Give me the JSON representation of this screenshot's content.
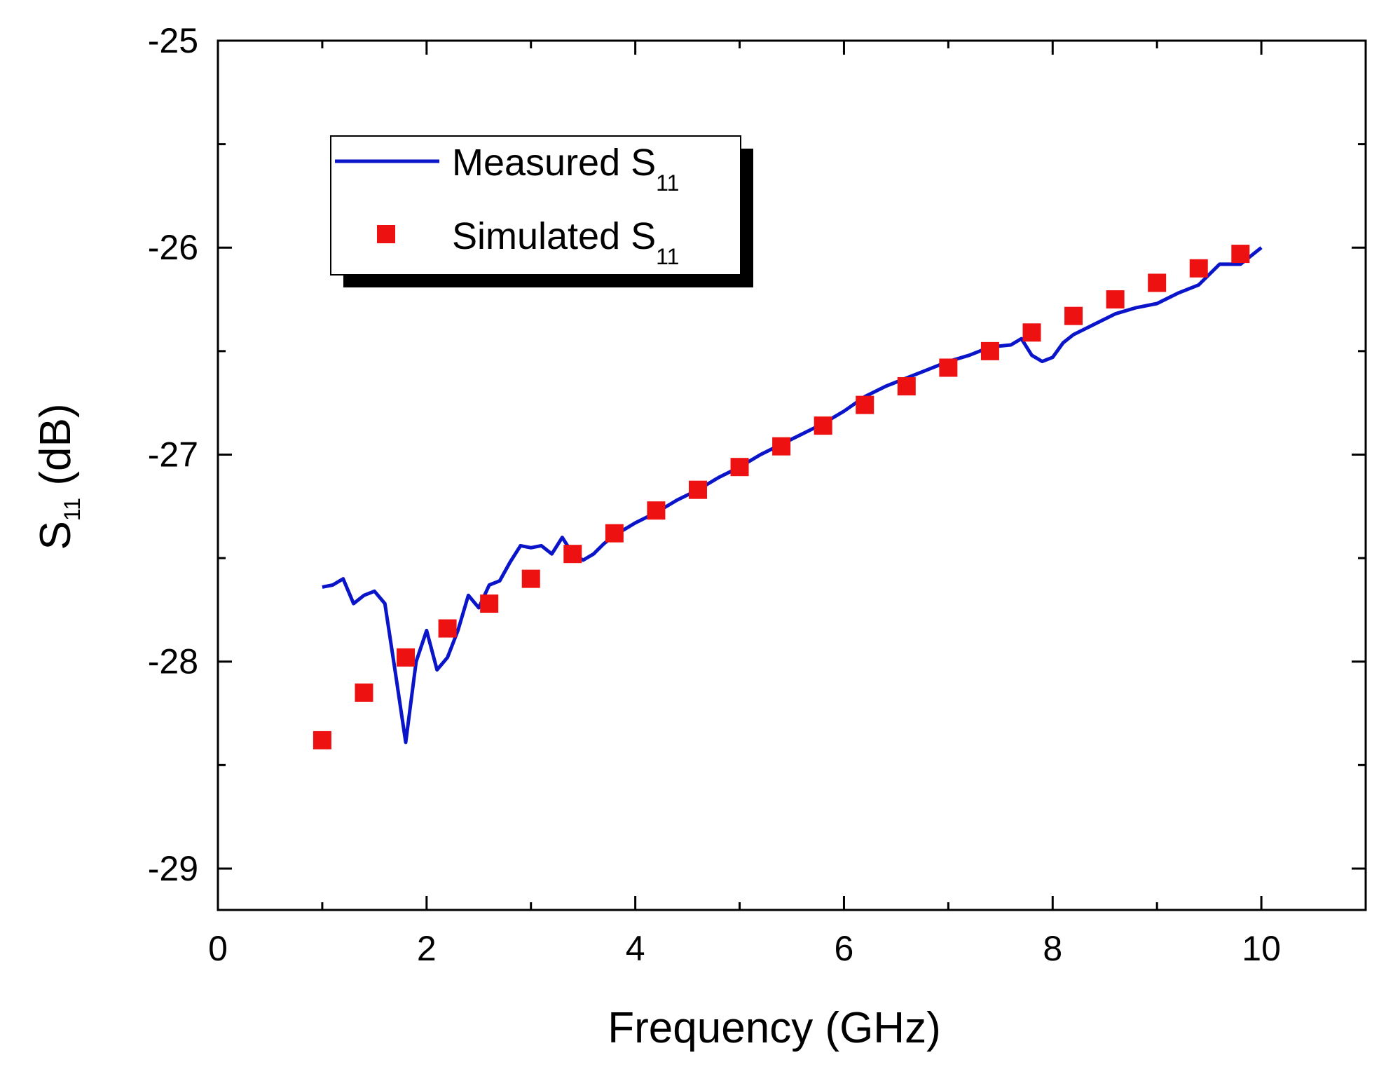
{
  "chart_data": {
    "type": "line",
    "xlabel": "Frequency (GHz)",
    "ylabel": "S11 (dB)",
    "ylabel_main": "S",
    "ylabel_sub": "11",
    "ylabel_unit": " (dB)",
    "xlim": [
      0,
      11
    ],
    "ylim": [
      -29.2,
      -25
    ],
    "x_ticks": [
      0,
      2,
      4,
      6,
      8,
      10
    ],
    "x_tick_labels": [
      "0",
      "2",
      "4",
      "6",
      "8",
      "10"
    ],
    "x_minor_ticks": [
      1,
      3,
      5,
      7,
      9,
      11
    ],
    "y_ticks": [
      -25,
      -26,
      -27,
      -28,
      -29
    ],
    "y_tick_labels": [
      "-25",
      "-26",
      "-27",
      "-28",
      "-29"
    ],
    "y_minor_ticks": [
      -25.5,
      -26.5,
      -27.5,
      -28.5
    ],
    "grid": false,
    "legend_position": "top-left",
    "series": [
      {
        "name": "Measured S11",
        "name_main": "Measured S",
        "name_sub": "11",
        "style": "line",
        "color": "#0a14c8",
        "x": [
          1.0,
          1.1,
          1.2,
          1.3,
          1.4,
          1.5,
          1.6,
          1.7,
          1.8,
          1.9,
          2.0,
          2.1,
          2.2,
          2.3,
          2.4,
          2.5,
          2.6,
          2.7,
          2.8,
          2.9,
          3.0,
          3.1,
          3.2,
          3.3,
          3.4,
          3.5,
          3.6,
          3.7,
          3.8,
          3.9,
          4.0,
          4.2,
          4.4,
          4.6,
          4.8,
          5.0,
          5.2,
          5.4,
          5.6,
          5.8,
          6.0,
          6.2,
          6.4,
          6.6,
          6.8,
          7.0,
          7.2,
          7.4,
          7.6,
          7.7,
          7.8,
          7.9,
          8.0,
          8.1,
          8.2,
          8.4,
          8.6,
          8.8,
          9.0,
          9.2,
          9.4,
          9.5,
          9.6,
          9.7,
          9.8,
          10.0
        ],
        "y": [
          -27.64,
          -27.63,
          -27.6,
          -27.72,
          -27.68,
          -27.66,
          -27.72,
          -28.05,
          -28.39,
          -28.0,
          -27.85,
          -28.04,
          -27.98,
          -27.85,
          -27.68,
          -27.74,
          -27.63,
          -27.61,
          -27.52,
          -27.44,
          -27.45,
          -27.44,
          -27.48,
          -27.4,
          -27.48,
          -27.51,
          -27.48,
          -27.43,
          -27.39,
          -27.36,
          -27.33,
          -27.28,
          -27.22,
          -27.17,
          -27.11,
          -27.06,
          -27.0,
          -26.95,
          -26.9,
          -26.85,
          -26.79,
          -26.72,
          -26.67,
          -26.63,
          -26.59,
          -26.55,
          -26.52,
          -26.48,
          -26.47,
          -26.44,
          -26.52,
          -26.55,
          -26.53,
          -26.46,
          -26.42,
          -26.37,
          -26.32,
          -26.29,
          -26.27,
          -26.22,
          -26.18,
          -26.13,
          -26.08,
          -26.08,
          -26.08,
          -26.0
        ]
      },
      {
        "name": "Simulated S11",
        "name_main": "Simulated S",
        "name_sub": "11",
        "style": "marker",
        "marker": "square",
        "color": "#ee1111",
        "x": [
          1.0,
          1.4,
          1.8,
          2.2,
          2.6,
          3.0,
          3.4,
          3.8,
          4.2,
          4.6,
          5.0,
          5.4,
          5.8,
          6.2,
          6.6,
          7.0,
          7.4,
          7.8,
          8.2,
          8.6,
          9.0,
          9.4,
          9.8
        ],
        "y": [
          -28.38,
          -28.15,
          -27.98,
          -27.84,
          -27.72,
          -27.6,
          -27.48,
          -27.38,
          -27.27,
          -27.17,
          -27.06,
          -26.96,
          -26.86,
          -26.76,
          -26.67,
          -26.58,
          -26.5,
          -26.41,
          -26.33,
          -26.25,
          -26.17,
          -26.1,
          -26.03
        ]
      }
    ]
  }
}
